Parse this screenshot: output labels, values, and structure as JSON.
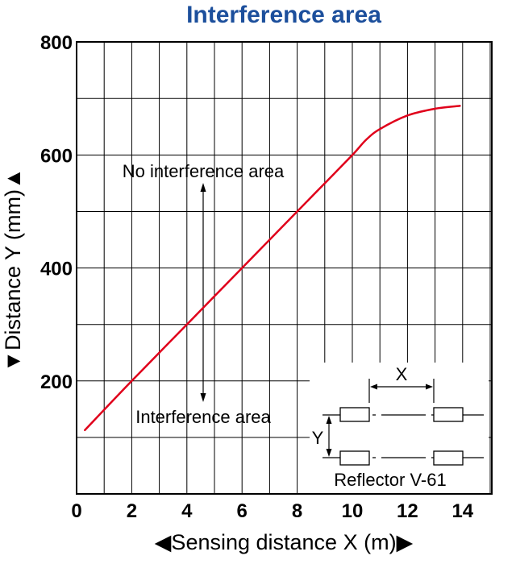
{
  "colors": {
    "title": "#1c4f9c",
    "series": "#e0001b",
    "grid": "#000000"
  },
  "chart_data": {
    "type": "line",
    "title": "Interference area",
    "xlabel": "◀Sensing distance X (m)▶",
    "ylabel": "▼Distance Y (mm)▲",
    "xlim": [
      0,
      15
    ],
    "ylim": [
      0,
      800
    ],
    "xticks": [
      "0",
      "2",
      "4",
      "6",
      "8",
      "10",
      "12",
      "14"
    ],
    "yticks": [
      "200",
      "400",
      "600",
      "800"
    ],
    "grid": true,
    "series": [
      {
        "x": [
          0.3,
          2,
          4,
          6,
          8,
          9,
          10,
          10.5,
          11,
          12,
          13,
          13.9
        ],
        "y": [
          113,
          200,
          300,
          400,
          500,
          550,
          600,
          627,
          646,
          670,
          682,
          687
        ]
      }
    ],
    "annotations": {
      "upper_region": "No interference area",
      "lower_region": "Interference area"
    },
    "inset": {
      "x_label": "X",
      "y_label": "Y",
      "caption": "Reflector V-61"
    }
  }
}
